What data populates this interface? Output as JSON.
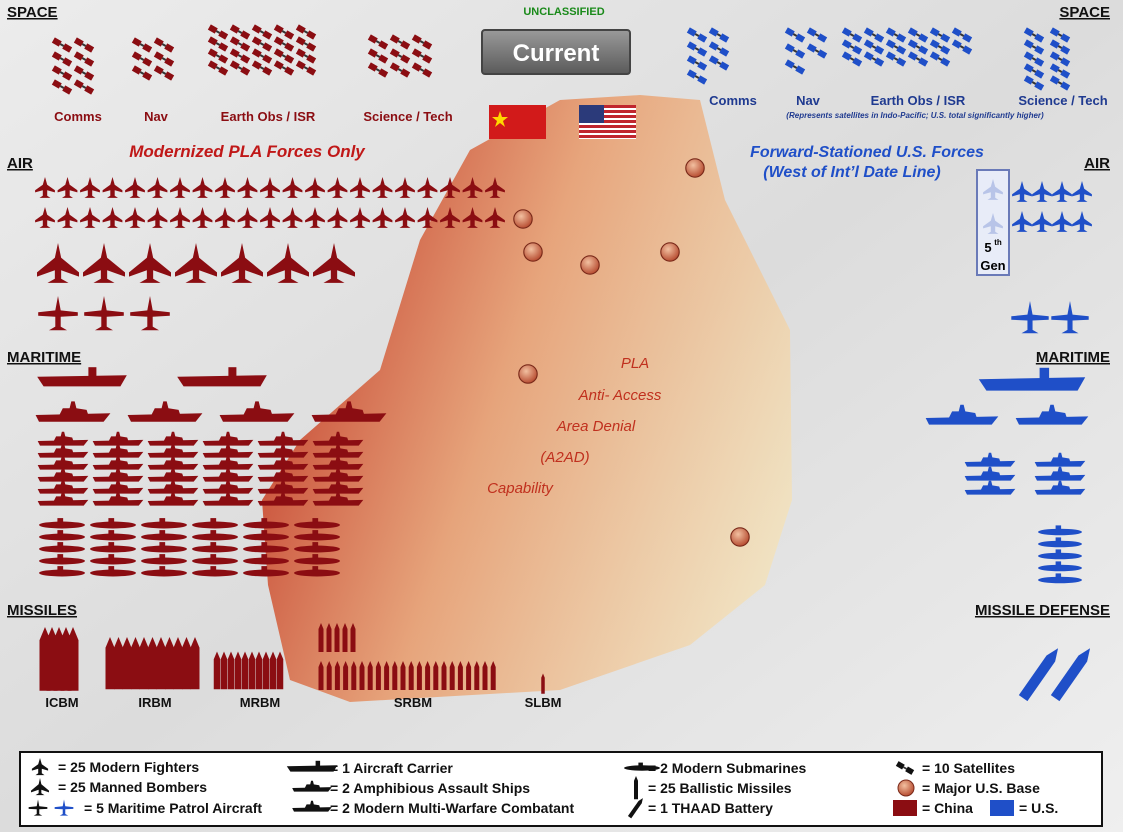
{
  "header": {
    "classification": "UNCLASSIFIED",
    "button": "Current"
  },
  "sections": {
    "space_left": "SPACE",
    "space_right": "SPACE",
    "air_left": "AIR",
    "air_right": "AIR",
    "maritime_left": "MARITIME",
    "maritime_right": "MARITIME",
    "missiles": "MISSILES",
    "missile_defense": "MISSILE DEFENSE"
  },
  "china": {
    "heading": "Modernized PLA Forces Only",
    "space": [
      {
        "label": "Comms",
        "icons": 8
      },
      {
        "label": "Nav",
        "icons": 6
      },
      {
        "label": "Earth Obs / ISR",
        "icons": 20
      },
      {
        "label": "Science / Tech",
        "icons": 9
      }
    ],
    "fighters": 42,
    "bombers": 7,
    "patrol_aircraft": 3,
    "carriers": 2,
    "amphibious_ships": 4,
    "combatants": 36,
    "submarines": 30,
    "missiles": [
      {
        "label": "ICBM",
        "icons": [
          5
        ]
      },
      {
        "label": "IRBM",
        "icons": [
          11
        ]
      },
      {
        "label": "MRBM",
        "icons": [
          10
        ]
      },
      {
        "label": "SRBM",
        "icons": [
          5,
          22
        ]
      },
      {
        "label": "SLBM",
        "icons": [
          1
        ]
      }
    ]
  },
  "us": {
    "heading": [
      "Forward-Stationed U.S. Forces",
      "(West of Int’l Date Line)"
    ],
    "space": [
      {
        "label": "Comms",
        "icons": 7
      },
      {
        "label": "Nav",
        "icons": 5
      },
      {
        "label": "Earth Obs / ISR",
        "icons": 17
      },
      {
        "label": "Science / Tech",
        "icons": 10
      }
    ],
    "space_note": "(Represents satellites in Indo-Pacific; U.S. total significantly higher)",
    "fighters": 8,
    "fifth_gen": {
      "icons": 2,
      "number": "5",
      "suffix": "th",
      "label": "Gen"
    },
    "patrol_aircraft": 2,
    "carriers": 1,
    "amphibious_ships": 2,
    "combatants": 6,
    "submarines": 5,
    "thaad": 2,
    "bases": 7
  },
  "a2ad": [
    "PLA",
    "Anti- Access",
    "Area Denial",
    "(A2AD)",
    "Capability"
  ],
  "legend": [
    "= 25 Modern Fighters",
    "= 25 Manned Bombers",
    "= 5 Maritime Patrol Aircraft",
    "= 1 Aircraft Carrier",
    "= 2 Amphibious Assault Ships",
    "= 2 Modern Multi-Warfare Combatant",
    "= 2 Modern Submarines",
    "= 25 Ballistic Missiles",
    "= 1 THAAD Battery",
    "= 10 Satellites",
    "= Major U.S. Base",
    "= China",
    "= U.S."
  ]
}
